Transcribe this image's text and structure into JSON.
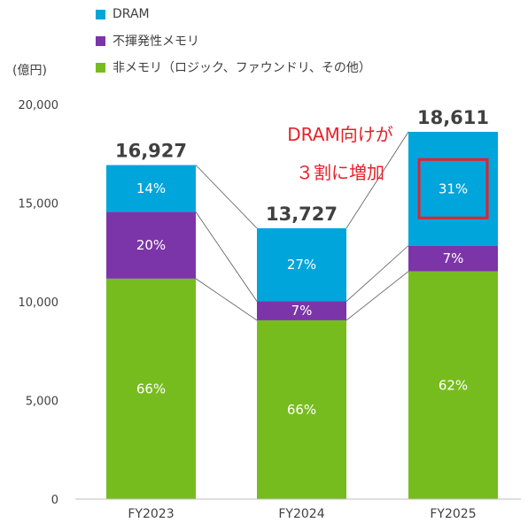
{
  "unit_label": "(億円)",
  "callout": {
    "line1": "DRAM向けが",
    "line2": "３割に増加",
    "color": "#e8202a"
  },
  "chart_data": {
    "type": "bar",
    "stacked": true,
    "categories": [
      "FY2023",
      "FY2024",
      "FY2025"
    ],
    "ylim": [
      0,
      20000
    ],
    "yticks": [
      0,
      5000,
      10000,
      15000,
      20000
    ],
    "ytick_labels": [
      "0",
      "5,000",
      "10,000",
      "15,000",
      "20,000"
    ],
    "totals": [
      16927,
      13727,
      18611
    ],
    "total_labels": [
      "16,927",
      "13,727",
      "18,611"
    ],
    "series": [
      {
        "name": "非メモリ（ロジック、ファウンドリ、その他）",
        "color": "#77bc1f",
        "values": [
          11172,
          9060,
          11539
        ],
        "labels": [
          "66%",
          "66%",
          "62%"
        ]
      },
      {
        "name": "不揮発性メモリ",
        "color": "#7c35a8",
        "values": [
          3385,
          961,
          1303
        ],
        "labels": [
          "20%",
          "7%",
          "7%"
        ]
      },
      {
        "name": "DRAM",
        "color": "#00a5dc",
        "values": [
          2370,
          3706,
          5769
        ],
        "labels": [
          "14%",
          "27%",
          "31%"
        ]
      }
    ],
    "legend_order": [
      "DRAM",
      "不揮発性メモリ",
      "非メモリ（ロジック、ファウンドリ、その他）"
    ],
    "legend_position": "top-left",
    "connector_lines": true,
    "highlight": {
      "category": "FY2025",
      "series": "DRAM",
      "color": "#e8202a"
    }
  }
}
